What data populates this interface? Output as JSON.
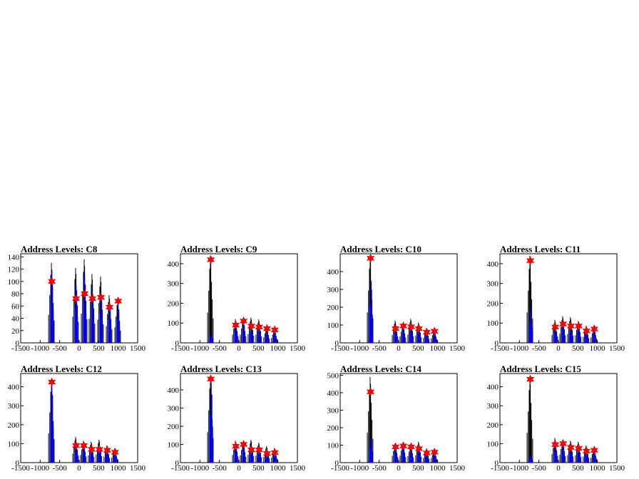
{
  "chart_data": [
    {
      "type": "bar",
      "title": "Address Levels: C8",
      "xlim": [
        -1500,
        1500
      ],
      "ylim": [
        0,
        145
      ],
      "yticks": [
        0,
        20,
        40,
        60,
        80,
        100,
        120,
        140
      ],
      "xticks": [
        -1500,
        -1000,
        -500,
        0,
        500,
        1000,
        1500
      ],
      "black_bars": [
        {
          "x": -700,
          "h": 130
        },
        {
          "x": -80,
          "h": 122
        },
        {
          "x": 140,
          "h": 136
        },
        {
          "x": 340,
          "h": 112
        },
        {
          "x": 560,
          "h": 108
        },
        {
          "x": 780,
          "h": 78
        },
        {
          "x": 1000,
          "h": 72
        }
      ],
      "blue_bars": [
        {
          "x": -690,
          "h": 118
        },
        {
          "x": -70,
          "h": 95
        },
        {
          "x": 150,
          "h": 110
        },
        {
          "x": 350,
          "h": 92
        },
        {
          "x": 570,
          "h": 80
        },
        {
          "x": 790,
          "h": 62
        },
        {
          "x": 1010,
          "h": 64
        }
      ],
      "markers": [
        {
          "x": -700,
          "y": 100
        },
        {
          "x": -80,
          "y": 72
        },
        {
          "x": 140,
          "y": 80
        },
        {
          "x": 340,
          "y": 72
        },
        {
          "x": 560,
          "y": 74
        },
        {
          "x": 780,
          "y": 58
        },
        {
          "x": 1000,
          "y": 68
        }
      ]
    },
    {
      "type": "bar",
      "title": "Address Levels: C9",
      "xlim": [
        -1500,
        1500
      ],
      "ylim": [
        0,
        450
      ],
      "yticks": [
        0,
        100,
        200,
        300,
        400
      ],
      "xticks": [
        -1500,
        -1000,
        -500,
        0,
        500,
        1000,
        1500
      ],
      "black_bars": [
        {
          "x": -720,
          "h": 440
        },
        {
          "x": -80,
          "h": 120
        },
        {
          "x": 120,
          "h": 120
        },
        {
          "x": 320,
          "h": 128
        },
        {
          "x": 520,
          "h": 118
        },
        {
          "x": 720,
          "h": 80
        },
        {
          "x": 920,
          "h": 70
        }
      ],
      "blue_bars": [
        {
          "x": -700,
          "h": 48
        },
        {
          "x": -70,
          "h": 90
        },
        {
          "x": 130,
          "h": 105
        },
        {
          "x": 330,
          "h": 95
        },
        {
          "x": 530,
          "h": 85
        },
        {
          "x": 730,
          "h": 70
        },
        {
          "x": 930,
          "h": 60
        }
      ],
      "markers": [
        {
          "x": -720,
          "y": 420
        },
        {
          "x": -80,
          "y": 90
        },
        {
          "x": 120,
          "y": 110
        },
        {
          "x": 320,
          "y": 85
        },
        {
          "x": 520,
          "y": 80
        },
        {
          "x": 720,
          "y": 72
        },
        {
          "x": 920,
          "y": 65
        }
      ]
    },
    {
      "type": "bar",
      "title": "Address Levels: C10",
      "xlim": [
        -1500,
        1500
      ],
      "ylim": [
        0,
        500
      ],
      "yticks": [
        0,
        100,
        200,
        300,
        400
      ],
      "xticks": [
        -1500,
        -1000,
        -500,
        0,
        500,
        1000,
        1500
      ],
      "black_bars": [
        {
          "x": -720,
          "h": 490
        },
        {
          "x": -80,
          "h": 125
        },
        {
          "x": 120,
          "h": 105
        },
        {
          "x": 320,
          "h": 135
        },
        {
          "x": 520,
          "h": 115
        },
        {
          "x": 720,
          "h": 80
        },
        {
          "x": 920,
          "h": 72
        }
      ],
      "blue_bars": [
        {
          "x": -700,
          "h": 350
        },
        {
          "x": -70,
          "h": 95
        },
        {
          "x": 130,
          "h": 90
        },
        {
          "x": 330,
          "h": 95
        },
        {
          "x": 530,
          "h": 85
        },
        {
          "x": 730,
          "h": 65
        },
        {
          "x": 930,
          "h": 60
        }
      ],
      "markers": [
        {
          "x": -720,
          "y": 475
        },
        {
          "x": -80,
          "y": 80
        },
        {
          "x": 120,
          "y": 95
        },
        {
          "x": 320,
          "y": 90
        },
        {
          "x": 520,
          "y": 80
        },
        {
          "x": 720,
          "y": 60
        },
        {
          "x": 920,
          "y": 65
        }
      ]
    },
    {
      "type": "bar",
      "title": "Address Levels: C11",
      "xlim": [
        -1500,
        1500
      ],
      "ylim": [
        0,
        450
      ],
      "yticks": [
        0,
        100,
        200,
        300,
        400
      ],
      "xticks": [
        -1500,
        -1000,
        -500,
        0,
        500,
        1000,
        1500
      ],
      "black_bars": [
        {
          "x": -720,
          "h": 440
        },
        {
          "x": -80,
          "h": 115
        },
        {
          "x": 120,
          "h": 135
        },
        {
          "x": 320,
          "h": 130
        },
        {
          "x": 520,
          "h": 110
        },
        {
          "x": 720,
          "h": 85
        },
        {
          "x": 920,
          "h": 80
        }
      ],
      "blue_bars": [
        {
          "x": -700,
          "h": 170
        },
        {
          "x": -70,
          "h": 90
        },
        {
          "x": 130,
          "h": 100
        },
        {
          "x": 330,
          "h": 95
        },
        {
          "x": 530,
          "h": 85
        },
        {
          "x": 730,
          "h": 65
        },
        {
          "x": 930,
          "h": 70
        }
      ],
      "markers": [
        {
          "x": -720,
          "y": 415
        },
        {
          "x": -80,
          "y": 80
        },
        {
          "x": 120,
          "y": 95
        },
        {
          "x": 320,
          "y": 85
        },
        {
          "x": 520,
          "y": 85
        },
        {
          "x": 720,
          "y": 60
        },
        {
          "x": 920,
          "y": 70
        }
      ]
    },
    {
      "type": "bar",
      "title": "Address Levels: C12",
      "xlim": [
        -1500,
        1500
      ],
      "ylim": [
        0,
        470
      ],
      "yticks": [
        0,
        100,
        200,
        300,
        400
      ],
      "xticks": [
        -1500,
        -1000,
        -500,
        0,
        500,
        1000,
        1500
      ],
      "black_bars": [
        {
          "x": -700,
          "h": 440
        },
        {
          "x": -80,
          "h": 135
        },
        {
          "x": 120,
          "h": 115
        },
        {
          "x": 320,
          "h": 110
        },
        {
          "x": 520,
          "h": 120
        },
        {
          "x": 720,
          "h": 90
        },
        {
          "x": 920,
          "h": 75
        }
      ],
      "blue_bars": [
        {
          "x": -690,
          "h": 420
        },
        {
          "x": -70,
          "h": 95
        },
        {
          "x": 130,
          "h": 100
        },
        {
          "x": 330,
          "h": 90
        },
        {
          "x": 530,
          "h": 85
        },
        {
          "x": 730,
          "h": 70
        },
        {
          "x": 930,
          "h": 60
        }
      ],
      "markers": [
        {
          "x": -700,
          "y": 425
        },
        {
          "x": -80,
          "y": 90
        },
        {
          "x": 120,
          "y": 90
        },
        {
          "x": 320,
          "y": 70
        },
        {
          "x": 520,
          "y": 70
        },
        {
          "x": 720,
          "y": 65
        },
        {
          "x": 920,
          "y": 55
        }
      ]
    },
    {
      "type": "bar",
      "title": "Address Levels: C13",
      "xlim": [
        -1500,
        1500
      ],
      "ylim": [
        0,
        490
      ],
      "yticks": [
        0,
        100,
        200,
        300,
        400
      ],
      "xticks": [
        -1500,
        -1000,
        -500,
        0,
        500,
        1000,
        1500
      ],
      "black_bars": [
        {
          "x": -720,
          "h": 480
        },
        {
          "x": -80,
          "h": 120
        },
        {
          "x": 120,
          "h": 115
        },
        {
          "x": 320,
          "h": 125
        },
        {
          "x": 520,
          "h": 110
        },
        {
          "x": 720,
          "h": 90
        },
        {
          "x": 920,
          "h": 80
        }
      ],
      "blue_bars": [
        {
          "x": -700,
          "h": 440
        },
        {
          "x": -70,
          "h": 90
        },
        {
          "x": 130,
          "h": 100
        },
        {
          "x": 330,
          "h": 95
        },
        {
          "x": 530,
          "h": 80
        },
        {
          "x": 730,
          "h": 65
        },
        {
          "x": 930,
          "h": 60
        }
      ],
      "markers": [
        {
          "x": -720,
          "y": 460
        },
        {
          "x": -80,
          "y": 90
        },
        {
          "x": 120,
          "y": 100
        },
        {
          "x": 320,
          "y": 70
        },
        {
          "x": 520,
          "y": 70
        },
        {
          "x": 720,
          "y": 50
        },
        {
          "x": 920,
          "y": 55
        }
      ]
    },
    {
      "type": "bar",
      "title": "Address Levels: C14",
      "xlim": [
        -1500,
        1500
      ],
      "ylim": [
        0,
        510
      ],
      "yticks": [
        0,
        100,
        200,
        300,
        400,
        500
      ],
      "xticks": [
        -1500,
        -1000,
        -500,
        0,
        500,
        1000,
        1500
      ],
      "black_bars": [
        {
          "x": -720,
          "h": 490
        },
        {
          "x": -80,
          "h": 110
        },
        {
          "x": 120,
          "h": 115
        },
        {
          "x": 320,
          "h": 105
        },
        {
          "x": 520,
          "h": 120
        },
        {
          "x": 720,
          "h": 80
        },
        {
          "x": 920,
          "h": 75
        }
      ],
      "blue_bars": [
        {
          "x": -700,
          "h": 145
        },
        {
          "x": -70,
          "h": 85
        },
        {
          "x": 130,
          "h": 100
        },
        {
          "x": 330,
          "h": 90
        },
        {
          "x": 530,
          "h": 85
        },
        {
          "x": 730,
          "h": 65
        },
        {
          "x": 930,
          "h": 60
        }
      ],
      "markers": [
        {
          "x": -720,
          "y": 405
        },
        {
          "x": -80,
          "y": 90
        },
        {
          "x": 120,
          "y": 95
        },
        {
          "x": 320,
          "y": 90
        },
        {
          "x": 520,
          "y": 80
        },
        {
          "x": 720,
          "y": 55
        },
        {
          "x": 920,
          "y": 60
        }
      ]
    },
    {
      "type": "bar",
      "title": "Address Levels: C15",
      "xlim": [
        -1500,
        1500
      ],
      "ylim": [
        0,
        470
      ],
      "yticks": [
        0,
        100,
        200,
        300,
        400
      ],
      "xticks": [
        -1500,
        -1000,
        -500,
        0,
        500,
        1000,
        1500
      ],
      "black_bars": [
        {
          "x": -720,
          "h": 450
        },
        {
          "x": -80,
          "h": 130
        },
        {
          "x": 120,
          "h": 120
        },
        {
          "x": 320,
          "h": 115
        },
        {
          "x": 520,
          "h": 110
        },
        {
          "x": 720,
          "h": 90
        },
        {
          "x": 920,
          "h": 75
        }
      ],
      "blue_bars": [
        {
          "x": -700,
          "h": 35
        },
        {
          "x": -70,
          "h": 95
        },
        {
          "x": 130,
          "h": 100
        },
        {
          "x": 330,
          "h": 90
        },
        {
          "x": 530,
          "h": 85
        },
        {
          "x": 730,
          "h": 70
        },
        {
          "x": 930,
          "h": 60
        }
      ],
      "markers": [
        {
          "x": -720,
          "y": 440
        },
        {
          "x": -80,
          "y": 95
        },
        {
          "x": 120,
          "y": 100
        },
        {
          "x": 320,
          "y": 80
        },
        {
          "x": 520,
          "y": 75
        },
        {
          "x": 720,
          "y": 60
        },
        {
          "x": 920,
          "y": 65
        }
      ]
    }
  ]
}
